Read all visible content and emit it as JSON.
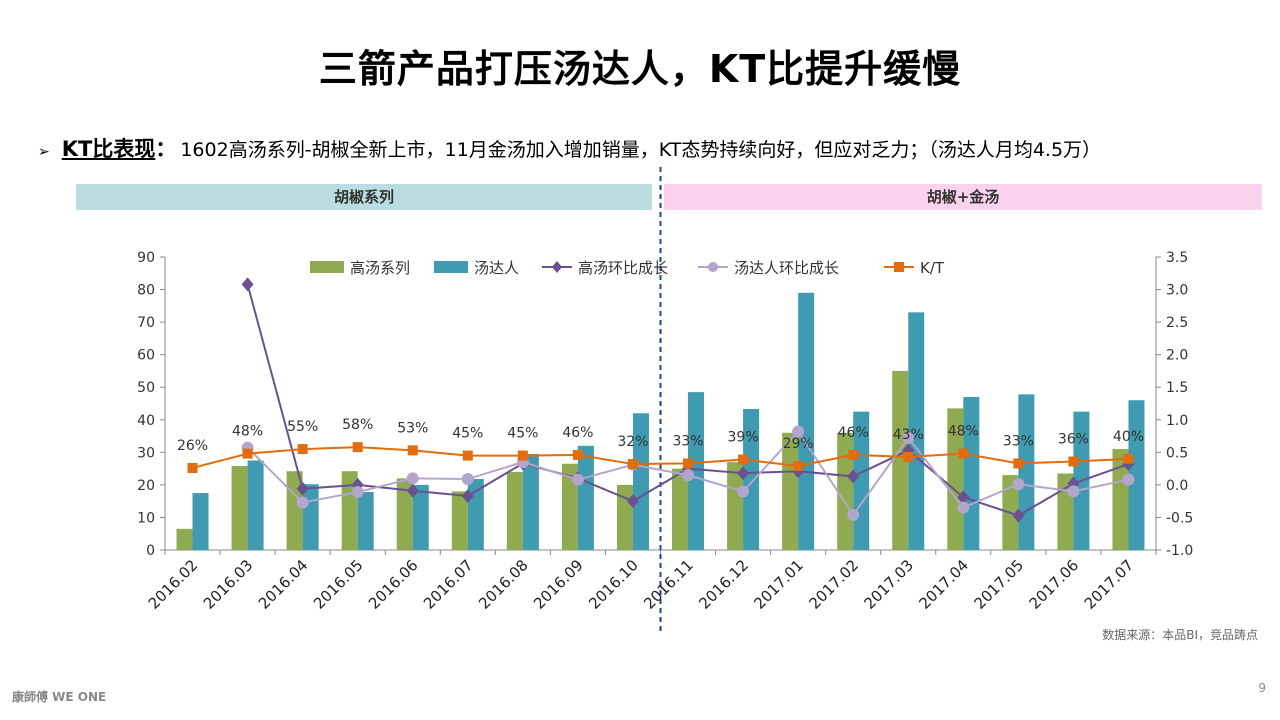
{
  "title": "三箭产品打压汤达人，KT比提升缓慢",
  "kt_label": "KT比表现",
  "kt_colon": "：",
  "kt_text": "1602高汤系列-胡椒全新上市，11月金汤加入增加销量，KT态势持续向好，但应对乏力；（汤达人月均4.5万）",
  "bands": {
    "left": "胡椒系列",
    "right": "胡椒+金汤"
  },
  "source": "数据来源：本品BI，竞品踌点",
  "page_number": "9",
  "logo_text": "康師傅 WE ONE",
  "chart_data": {
    "type": "bar",
    "categories": [
      "2016.02",
      "2016.03",
      "2016.04",
      "2016.05",
      "2016.06",
      "2016.07",
      "2016.08",
      "2016.09",
      "2016.10",
      "2016.11",
      "2016.12",
      "2017.01",
      "2017.02",
      "2017.03",
      "2017.04",
      "2017.05",
      "2017.06",
      "2017.07"
    ],
    "left_axis": {
      "ylim": [
        0,
        90
      ],
      "ticks": [
        "0",
        "10",
        "20",
        "30",
        "40",
        "50",
        "60",
        "70",
        "80",
        "90"
      ]
    },
    "right_axis": {
      "ylim": [
        -1.0,
        3.5
      ],
      "ticks": [
        "-1.0",
        "-0.5",
        "0.0",
        "0.5",
        "1.0",
        "1.5",
        "2.0",
        "2.5",
        "3.0",
        "3.5"
      ]
    },
    "bar_series": [
      {
        "name": "高汤系列",
        "color": "#8faa4f",
        "values": [
          6.5,
          25.8,
          24.2,
          24.2,
          22,
          18,
          24,
          26.5,
          20,
          25,
          27,
          36,
          36,
          55,
          43.5,
          23,
          23.5,
          31
        ]
      },
      {
        "name": "汤达人",
        "color": "#3e9bb1",
        "values": [
          17.5,
          27.5,
          20.2,
          17.8,
          20,
          21.8,
          29.5,
          32,
          42,
          48.5,
          43.3,
          79,
          42.5,
          73,
          47,
          47.8,
          42.5,
          46
        ]
      }
    ],
    "line_series": [
      {
        "name": "高汤环比成长",
        "color": "#6a5192",
        "marker": "diamond",
        "values": [
          null,
          3.08,
          -0.06,
          0.0,
          -0.09,
          -0.17,
          0.33,
          0.1,
          -0.25,
          0.25,
          0.18,
          0.21,
          0.13,
          0.53,
          -0.19,
          -0.47,
          0.02,
          0.32
        ]
      },
      {
        "name": "汤达人环比成长",
        "color": "#b3a5cc",
        "marker": "circle",
        "values": [
          null,
          0.57,
          -0.27,
          -0.11,
          0.1,
          0.09,
          0.35,
          0.08,
          0.31,
          0.15,
          -0.1,
          0.82,
          -0.46,
          0.72,
          -0.35,
          0.01,
          -0.1,
          0.08
        ]
      },
      {
        "name": "K/T",
        "color": "#e46c0a",
        "marker": "square",
        "values": [
          0.26,
          0.48,
          0.55,
          0.58,
          0.53,
          0.45,
          0.45,
          0.46,
          0.32,
          0.33,
          0.39,
          0.29,
          0.46,
          0.43,
          0.48,
          0.33,
          0.36,
          0.4
        ]
      }
    ],
    "kt_labels": [
      "26%",
      "48%",
      "55%",
      "58%",
      "53%",
      "45%",
      "45%",
      "46%",
      "32%",
      "33%",
      "39%",
      "29%",
      "46%",
      "43%",
      "48%",
      "33%",
      "36%",
      "40%"
    ],
    "divider_after_category": "2016.10"
  }
}
